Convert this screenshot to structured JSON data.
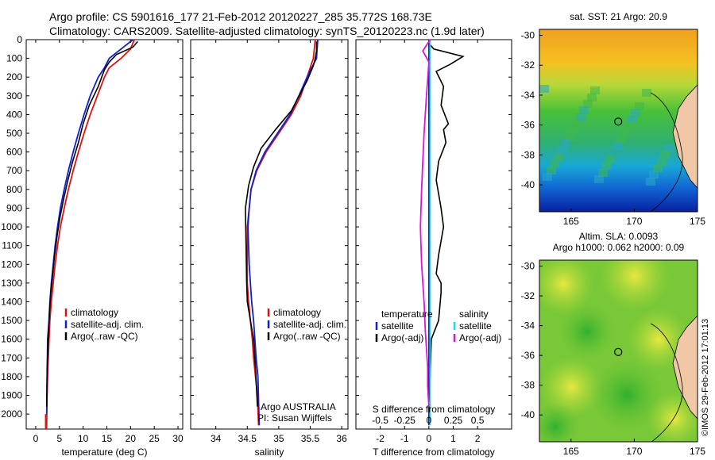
{
  "header": {
    "line1": "Argo profile: CS 5901616_177 21-Feb-2012 20120227_285 35.772S 168.73E",
    "line2": "Climatology: CARS2009. Satellite-adjusted climatology: synTS_20120223.nc (1.9d later)"
  },
  "credit": "©IMOS 29-Feb-2012 17:01:13",
  "colors": {
    "climatology": "#e01010",
    "satellite": "#1020d0",
    "argo": "#000000",
    "sal_satellite": "#10e0f0",
    "sal_argo": "#e010e0"
  },
  "chart_data": [
    {
      "type": "line",
      "xlabel": "temperature (deg C)",
      "ylabel": "",
      "xlim": [
        -2,
        31
      ],
      "ylim": [
        2080,
        0
      ],
      "xticks": [
        "0",
        "5",
        "10",
        "15",
        "20",
        "25",
        "30"
      ],
      "yticks": [
        "0",
        "100",
        "200",
        "300",
        "400",
        "500",
        "600",
        "700",
        "800",
        "900",
        "1000",
        "1100",
        "1200",
        "1300",
        "1400",
        "1500",
        "1600",
        "1700",
        "1800",
        "1900",
        "2000"
      ],
      "legend": [
        "climatology",
        "satellite-adj. clim.",
        "Argo(..raw -QC)"
      ],
      "series": [
        {
          "key": "clim",
          "x": [
            20.8,
            20,
            18,
            15.5,
            14.5,
            13,
            11.5,
            10.2,
            9,
            7.9,
            6.9,
            6,
            5.2,
            4.6,
            4.1,
            3.7,
            3.3,
            3,
            2.8,
            2.5,
            2.3,
            2.2
          ],
          "y": [
            0,
            50,
            100,
            150,
            200,
            300,
            400,
            500,
            600,
            700,
            800,
            900,
            1000,
            1100,
            1200,
            1300,
            1400,
            1500,
            1600,
            1800,
            2000,
            2060
          ]
        },
        {
          "key": "sat",
          "x": [
            20.5,
            18,
            15.5,
            14.5,
            13.2,
            11.5,
            10.2,
            9,
            7.9,
            6.9,
            6,
            5.2,
            4.6,
            4.1,
            3.7,
            3.3,
            3,
            2.8,
            2.5,
            2.3
          ],
          "y": [
            0,
            50,
            100,
            150,
            200,
            300,
            400,
            500,
            600,
            700,
            800,
            900,
            1000,
            1100,
            1200,
            1300,
            1400,
            1500,
            1600,
            2060
          ]
        },
        {
          "key": "argo",
          "x": [
            21.5,
            20.5,
            17,
            15.5,
            14.5,
            13.2,
            11.3,
            10,
            9,
            7.8,
            6.8,
            5.9,
            5.1,
            4.5,
            4,
            3.6,
            3.2,
            2.9,
            2.7,
            2.4,
            2.3
          ],
          "y": [
            10,
            40,
            80,
            120,
            160,
            250,
            350,
            450,
            550,
            650,
            750,
            850,
            950,
            1050,
            1150,
            1250,
            1350,
            1450,
            1550,
            1750,
            1960
          ]
        }
      ]
    },
    {
      "type": "line",
      "xlabel": "salinity",
      "xlim": [
        33.6,
        36.1
      ],
      "ylim": [
        2080,
        0
      ],
      "xticks": [
        "34",
        "34.5",
        "35",
        "35.5",
        "36"
      ],
      "legend": [
        "climatology",
        "satellite-adj. clim.",
        "Argo(..raw -QC)"
      ],
      "annotations": [
        "Argo AUSTRALIA",
        "PI: Susan Wijffels"
      ],
      "series": [
        {
          "key": "clim",
          "x": [
            35.58,
            35.55,
            35.45,
            35.35,
            35.2,
            35.0,
            34.8,
            34.65,
            34.56,
            34.53,
            34.5,
            34.5,
            34.5,
            34.5,
            34.52,
            34.55,
            34.58,
            34.6,
            34.63,
            34.66,
            34.68
          ],
          "y": [
            0,
            100,
            200,
            300,
            400,
            500,
            600,
            700,
            800,
            900,
            1000,
            1100,
            1200,
            1300,
            1400,
            1500,
            1600,
            1700,
            1800,
            1900,
            2060
          ]
        },
        {
          "key": "sat",
          "x": [
            35.62,
            35.6,
            35.45,
            35.32,
            35.18,
            34.98,
            34.78,
            34.64,
            34.56,
            34.53,
            34.51,
            34.52,
            34.53,
            34.55,
            34.57,
            34.6,
            34.62,
            34.64,
            34.67,
            34.69
          ],
          "y": [
            0,
            100,
            200,
            300,
            400,
            500,
            600,
            700,
            800,
            900,
            1000,
            1100,
            1200,
            1300,
            1400,
            1500,
            1600,
            1700,
            1800,
            2060
          ]
        },
        {
          "key": "argo",
          "x": [
            35.6,
            35.6,
            35.58,
            35.55,
            35.45,
            35.2,
            34.95,
            34.72,
            34.6,
            34.52,
            34.47,
            34.48,
            34.49,
            34.5,
            34.55,
            34.6,
            34.63,
            34.66
          ],
          "y": [
            10,
            60,
            100,
            140,
            220,
            380,
            480,
            580,
            680,
            780,
            900,
            1100,
            1300,
            1400,
            1500,
            1600,
            1750,
            1960
          ]
        }
      ]
    },
    {
      "type": "line",
      "xlabel": "T difference from climatology",
      "toplabel": "S difference from climatology",
      "xlim": [
        -3,
        3.4
      ],
      "ylim": [
        2080,
        0
      ],
      "xticks": [
        "-2",
        "-1",
        "0",
        "1",
        "2"
      ],
      "topticks": [
        "-0.5",
        "-0.25",
        "0",
        "0.25",
        "0.5"
      ],
      "legend": {
        "temperature": [
          "satellite",
          "Argo(-adj)"
        ],
        "salinity": [
          "satellite",
          "Argo(-adj)"
        ]
      },
      "series": [
        {
          "key": "T_sat",
          "x": [
            0.0,
            0.0,
            0.0,
            0.0
          ],
          "y": [
            0,
            300,
            1000,
            2060
          ]
        },
        {
          "key": "T_argo",
          "x": [
            0.0,
            0.2,
            1.4,
            0.9,
            0.3,
            0.6,
            0.5,
            0.8,
            0.6,
            0.7,
            0.4,
            0.3,
            0.5,
            0.6,
            0.4,
            0.3,
            0.5,
            0.5,
            0.4,
            0.1,
            0.05,
            0.0
          ],
          "y": [
            20,
            50,
            90,
            130,
            170,
            250,
            350,
            450,
            480,
            550,
            650,
            750,
            900,
            1000,
            1150,
            1250,
            1300,
            1350,
            1500,
            1600,
            1800,
            1960
          ]
        },
        {
          "key": "S_sat",
          "x": [
            0.05,
            0.05,
            0.05,
            0.05
          ],
          "y": [
            0,
            300,
            1000,
            2060
          ]
        },
        {
          "key": "S_argo",
          "x": [
            0.05,
            -0.25,
            0.0,
            -0.1,
            -0.2,
            -0.25,
            -0.3,
            -0.35,
            -0.3,
            -0.2,
            -0.15,
            -0.1,
            -0.05,
            -0.05,
            0.0
          ],
          "y": [
            0,
            60,
            120,
            300,
            500,
            650,
            800,
            1000,
            1200,
            1400,
            1550,
            1650,
            1750,
            1850,
            1960
          ]
        }
      ]
    }
  ],
  "maps": [
    {
      "title": "sat. SST: 21 Argo: 20.9",
      "yticks": [
        "-30",
        "-32",
        "-34",
        "-36",
        "-38",
        "-40"
      ],
      "xticks": [
        "165",
        "170",
        "175"
      ],
      "point": {
        "lon": 168.73,
        "lat": -35.77
      }
    },
    {
      "title": "Altim. SLA: 0.0093",
      "subtitle": "Argo h1000: 0.062 h2000: 0.09",
      "yticks": [
        "-30",
        "-32",
        "-34",
        "-36",
        "-38",
        "-40"
      ],
      "xticks": [
        "165",
        "170",
        "175"
      ],
      "point": {
        "lon": 168.73,
        "lat": -35.77
      }
    }
  ]
}
